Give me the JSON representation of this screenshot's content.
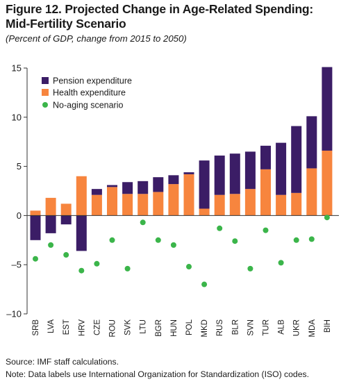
{
  "title_line1": "Figure 12. Projected Change in Age-Related Spending:",
  "title_line2": "Mid-Fertility Scenario",
  "subtitle": "(Percent of GDP, change from 2015 to 2050)",
  "source": "Source: IMF staff calculations.",
  "note": "Note: Data labels use International Organization for Standardization (ISO) codes.",
  "colors": {
    "pension": "#3b1d66",
    "health": "#f7853e",
    "no_aging": "#3bb54a",
    "axis": "#333333"
  },
  "chart_data": {
    "type": "bar",
    "stacked": true,
    "categories": [
      "SRB",
      "LVA",
      "EST",
      "HRV",
      "CZE",
      "ROU",
      "SVK",
      "LTU",
      "BGR",
      "HUN",
      "POL",
      "MKD",
      "RUS",
      "BLR",
      "SVN",
      "TUR",
      "ALB",
      "UKR",
      "MDA",
      "BIH"
    ],
    "series": [
      {
        "name": "Pension expenditure",
        "kind": "bar",
        "values": [
          -2.5,
          -1.8,
          -0.9,
          -3.6,
          0.6,
          0.2,
          1.2,
          1.3,
          1.5,
          0.9,
          0.2,
          4.9,
          4.0,
          4.1,
          3.8,
          2.4,
          5.3,
          6.8,
          5.3,
          8.5
        ]
      },
      {
        "name": "Health expenditure",
        "kind": "bar",
        "values": [
          0.5,
          1.8,
          1.2,
          4.0,
          2.1,
          2.9,
          2.2,
          2.2,
          2.4,
          3.2,
          4.2,
          0.7,
          2.1,
          2.2,
          2.7,
          4.7,
          2.1,
          2.3,
          4.8,
          6.6
        ]
      },
      {
        "name": "No-aging scenario",
        "kind": "scatter",
        "values": [
          -4.4,
          -3.0,
          -4.0,
          -5.6,
          -4.9,
          -2.5,
          -5.4,
          -0.7,
          -2.5,
          -3.0,
          -5.2,
          -7.0,
          -1.3,
          -2.6,
          -5.4,
          -1.5,
          -4.8,
          -2.5,
          -2.4,
          -0.2
        ]
      }
    ],
    "ylim": [
      -10,
      15
    ],
    "yticks": [
      -10,
      -5,
      0,
      5,
      10,
      15
    ],
    "ytick_labels": [
      "–10",
      "–5",
      "0",
      "5",
      "10",
      "15"
    ],
    "legend": {
      "placement": "top-left",
      "entries": [
        "Pension expenditure",
        "Health expenditure",
        "No-aging scenario"
      ]
    }
  }
}
